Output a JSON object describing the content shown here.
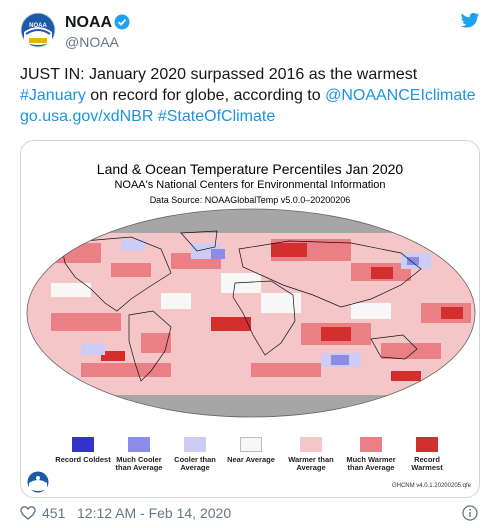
{
  "tweet": {
    "display_name": "NOAA",
    "handle": "@NOAA",
    "text_plain_1": "JUST IN: January 2020 surpassed 2016 as the warmest",
    "hashtag_january": "#January",
    "text_plain_2": " on record for globe, according to ",
    "mention": "@NOAANCEIclimate",
    "link_url": "go.usa.gov/xdNBR",
    "hashtag_state": "#StateOfClimate",
    "likes": "451",
    "timestamp": "12:12 AM - Feb 14, 2020"
  },
  "figure": {
    "title": "Land & Ocean Temperature Percentiles Jan 2020",
    "subtitle": "NOAA's National Centers for Environmental Information",
    "source": "Data Source: NOAAGlobalTemp v5.0.0–20200206",
    "version": "GHCNM v4.0.1.20200205.qfe",
    "legend": [
      {
        "label": "Record Coldest",
        "color": "#3333cc"
      },
      {
        "label": "Much Cooler than Average",
        "color": "#8c8ce6"
      },
      {
        "label": "Cooler than Average",
        "color": "#ccccf5"
      },
      {
        "label": "Near Average",
        "color": "#f7f7f7"
      },
      {
        "label": "Warmer than Average",
        "color": "#f5c6c8"
      },
      {
        "label": "Much Warmer than Average",
        "color": "#ea7f85"
      },
      {
        "label": "Record Warmest",
        "color": "#d32f2f"
      }
    ]
  },
  "colors": {
    "link": "#1b95e0",
    "verified": "#1da1f2",
    "twitter_bird": "#1da1f2",
    "secondary_text": "#657786"
  },
  "icons": [
    "noaa-logo-icon",
    "verified-badge-icon",
    "twitter-bird-icon",
    "heart-icon",
    "info-icon"
  ]
}
